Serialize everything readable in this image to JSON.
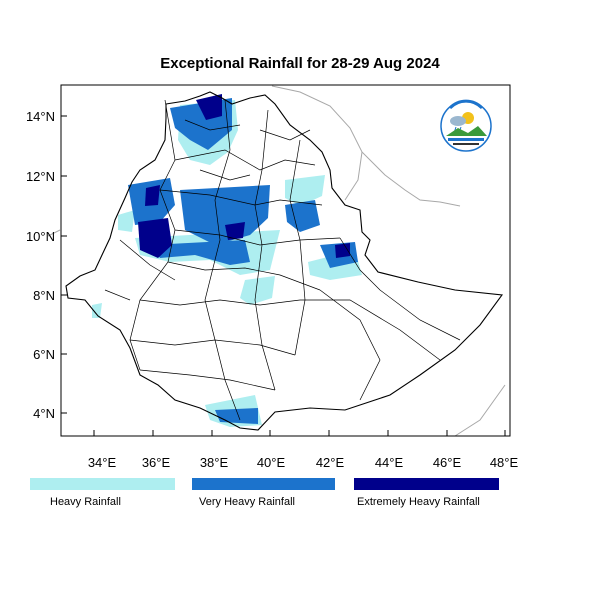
{
  "title": "Exceptional Rainfall for 28-29 Aug 2024",
  "lat_labels": [
    "14°N",
    "12°N",
    "10°N",
    "8°N",
    "6°N",
    "4°N"
  ],
  "lon_labels": [
    "34°E",
    "36°E",
    "38°E",
    "40°E",
    "42°E",
    "44°E",
    "46°E",
    "48°E"
  ],
  "legend": [
    {
      "label": "Heavy Rainfall",
      "color": "#aeeef0"
    },
    {
      "label": "Very Heavy Rainfall",
      "color": "#1c73cc"
    },
    {
      "label": "Extremely Heavy Rainfall",
      "color": "#00008b"
    }
  ],
  "logo": {
    "name": "ethiopian-meteorology-institute-logo"
  }
}
